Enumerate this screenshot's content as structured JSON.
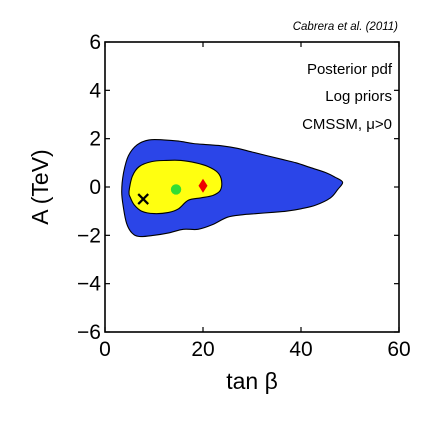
{
  "credit": "Cabrera et al. (2011)",
  "chart_data": {
    "type": "contour",
    "xlabel": "tan β",
    "ylabel": "A (TeV)",
    "xlim": [
      0,
      60
    ],
    "ylim": [
      -6,
      6
    ],
    "xticks": [
      0,
      20,
      40,
      60
    ],
    "yticks": [
      -6,
      -4,
      -2,
      0,
      2,
      4,
      6
    ],
    "grid": false,
    "annotations": [
      "Posterior pdf",
      "Log priors",
      "CMSSM, μ>0"
    ],
    "regions": [
      {
        "level": "outer",
        "color": "#2b45e8",
        "outline": [
          [
            3.4,
            -0.2
          ],
          [
            3.8,
            0.6
          ],
          [
            4.8,
            1.3
          ],
          [
            6.6,
            1.75
          ],
          [
            9.0,
            1.95
          ],
          [
            12.0,
            1.95
          ],
          [
            15.0,
            1.9
          ],
          [
            18.0,
            1.8
          ],
          [
            21.0,
            1.75
          ],
          [
            24.0,
            1.7
          ],
          [
            27.0,
            1.6
          ],
          [
            30.0,
            1.45
          ],
          [
            33.0,
            1.3
          ],
          [
            36.0,
            1.15
          ],
          [
            39.0,
            1.0
          ],
          [
            42.0,
            0.8
          ],
          [
            45.0,
            0.6
          ],
          [
            47.0,
            0.4
          ],
          [
            48.5,
            0.2
          ],
          [
            47.5,
            -0.1
          ],
          [
            46.0,
            -0.45
          ],
          [
            43.0,
            -0.75
          ],
          [
            40.0,
            -0.9
          ],
          [
            37.0,
            -1.0
          ],
          [
            34.0,
            -1.05
          ],
          [
            31.0,
            -1.1
          ],
          [
            28.0,
            -1.15
          ],
          [
            25.0,
            -1.25
          ],
          [
            22.0,
            -1.55
          ],
          [
            19.0,
            -1.75
          ],
          [
            16.0,
            -1.75
          ],
          [
            13.0,
            -1.9
          ],
          [
            10.0,
            -2.0
          ],
          [
            7.0,
            -2.05
          ],
          [
            5.5,
            -1.9
          ],
          [
            4.4,
            -1.5
          ],
          [
            3.8,
            -0.9
          ]
        ]
      },
      {
        "level": "inner",
        "color": "#ffff10",
        "outline": [
          [
            4.9,
            -0.2
          ],
          [
            5.6,
            0.45
          ],
          [
            7.0,
            0.85
          ],
          [
            9.5,
            1.05
          ],
          [
            12.5,
            1.1
          ],
          [
            15.5,
            1.1
          ],
          [
            18.5,
            1.0
          ],
          [
            21.0,
            0.85
          ],
          [
            23.0,
            0.6
          ],
          [
            23.8,
            0.25
          ],
          [
            23.5,
            -0.15
          ],
          [
            22.0,
            -0.35
          ],
          [
            19.5,
            -0.45
          ],
          [
            17.0,
            -0.55
          ],
          [
            15.0,
            -0.9
          ],
          [
            13.0,
            -1.05
          ],
          [
            10.0,
            -1.1
          ],
          [
            7.5,
            -1.0
          ],
          [
            6.0,
            -0.75
          ],
          [
            5.2,
            -0.45
          ]
        ]
      }
    ],
    "markers": [
      {
        "name": "cross",
        "symbol": "x",
        "color": "#000000",
        "x": 7.8,
        "y": -0.5
      },
      {
        "name": "dot",
        "symbol": "circle",
        "color": "#33dd33",
        "x": 14.5,
        "y": -0.1
      },
      {
        "name": "diamond",
        "symbol": "diamond",
        "color": "#ee0000",
        "x": 20.0,
        "y": 0.05
      }
    ]
  }
}
